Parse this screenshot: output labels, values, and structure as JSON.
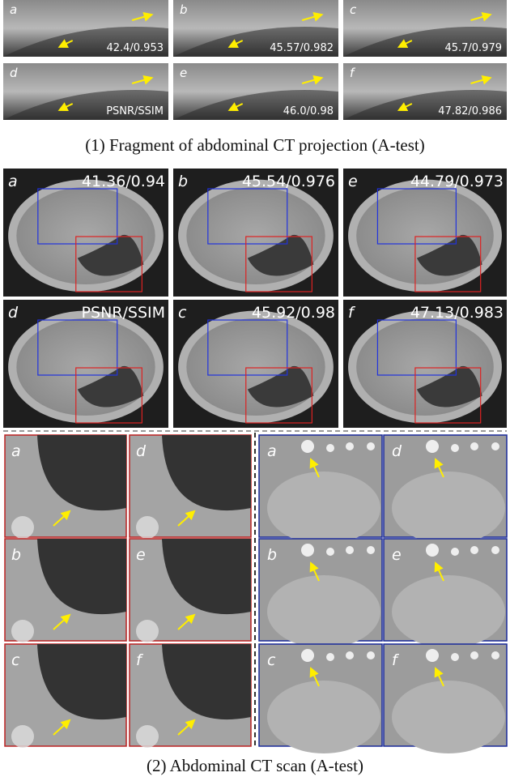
{
  "part1": {
    "caption": "(1) Fragment of abdominal CT projection (A-test)",
    "panels": [
      {
        "letter": "a",
        "metric": "42.4/0.953"
      },
      {
        "letter": "b",
        "metric": "45.57/0.982"
      },
      {
        "letter": "c",
        "metric": "45.7/0.979"
      },
      {
        "letter": "d",
        "metric": "PSNR/SSIM"
      },
      {
        "letter": "e",
        "metric": "46.0/0.98"
      },
      {
        "letter": "f",
        "metric": "47.82/0.986"
      }
    ]
  },
  "part2": {
    "caption": "(2) Abdominal CT scan (A-test)",
    "panels": [
      {
        "letter": "a",
        "metric": "41.36/0.94"
      },
      {
        "letter": "b",
        "metric": "45.54/0.976"
      },
      {
        "letter": "e",
        "metric": "44.79/0.973"
      },
      {
        "letter": "d",
        "metric": "PSNR/SSIM"
      },
      {
        "letter": "c",
        "metric": "45.92/0.98"
      },
      {
        "letter": "f",
        "metric": "47.13/0.983"
      }
    ],
    "zoom_red": [
      "a",
      "d",
      "b",
      "e",
      "c",
      "f"
    ],
    "zoom_blue": [
      "a",
      "d",
      "b",
      "e",
      "c",
      "f"
    ]
  }
}
